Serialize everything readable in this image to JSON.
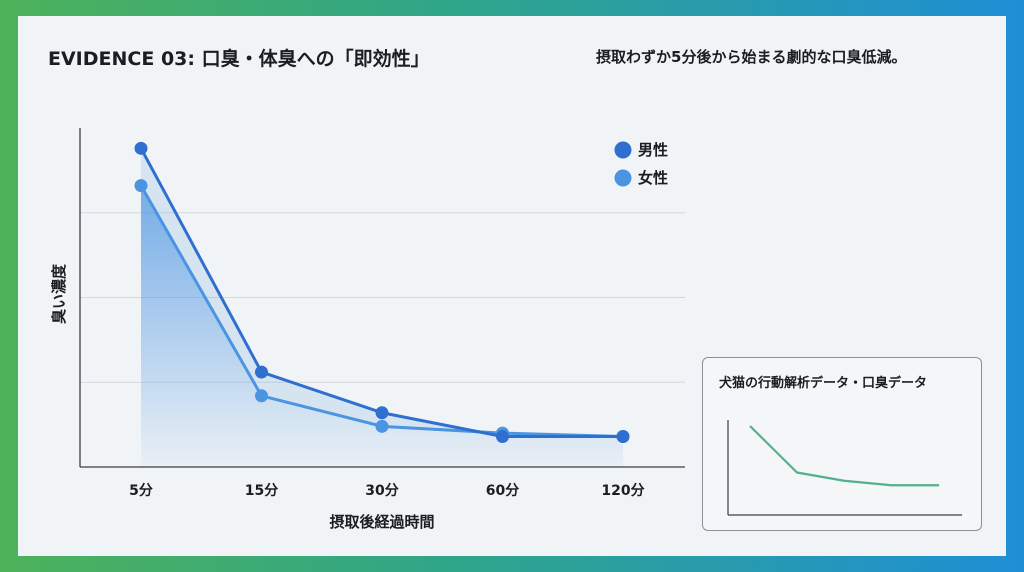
{
  "header": {
    "title": "EVIDENCE 03: 口臭・体臭への「即効性」",
    "subtitle": "摂取わずか5分後から始まる劇的な口臭低減。"
  },
  "chart_data": [
    {
      "type": "line",
      "title": "",
      "xlabel": "摂取後経過時間",
      "ylabel": "臭い濃度",
      "categories": [
        "5分",
        "15分",
        "30分",
        "60分",
        "120分"
      ],
      "ylim": [
        0,
        100
      ],
      "grid": true,
      "legend_position": "top-right",
      "series": [
        {
          "name": "男性",
          "color": "#2f6fd0",
          "values": [
            94,
            28,
            16,
            9,
            9
          ]
        },
        {
          "name": "女性",
          "color": "#4a94e2",
          "values": [
            83,
            21,
            12,
            10,
            9
          ]
        }
      ]
    },
    {
      "type": "line",
      "title": "犬猫の行動解析データ・口臭データ",
      "color": "#52b08c",
      "values": [
        100,
        38,
        27,
        21,
        21
      ]
    }
  ]
}
